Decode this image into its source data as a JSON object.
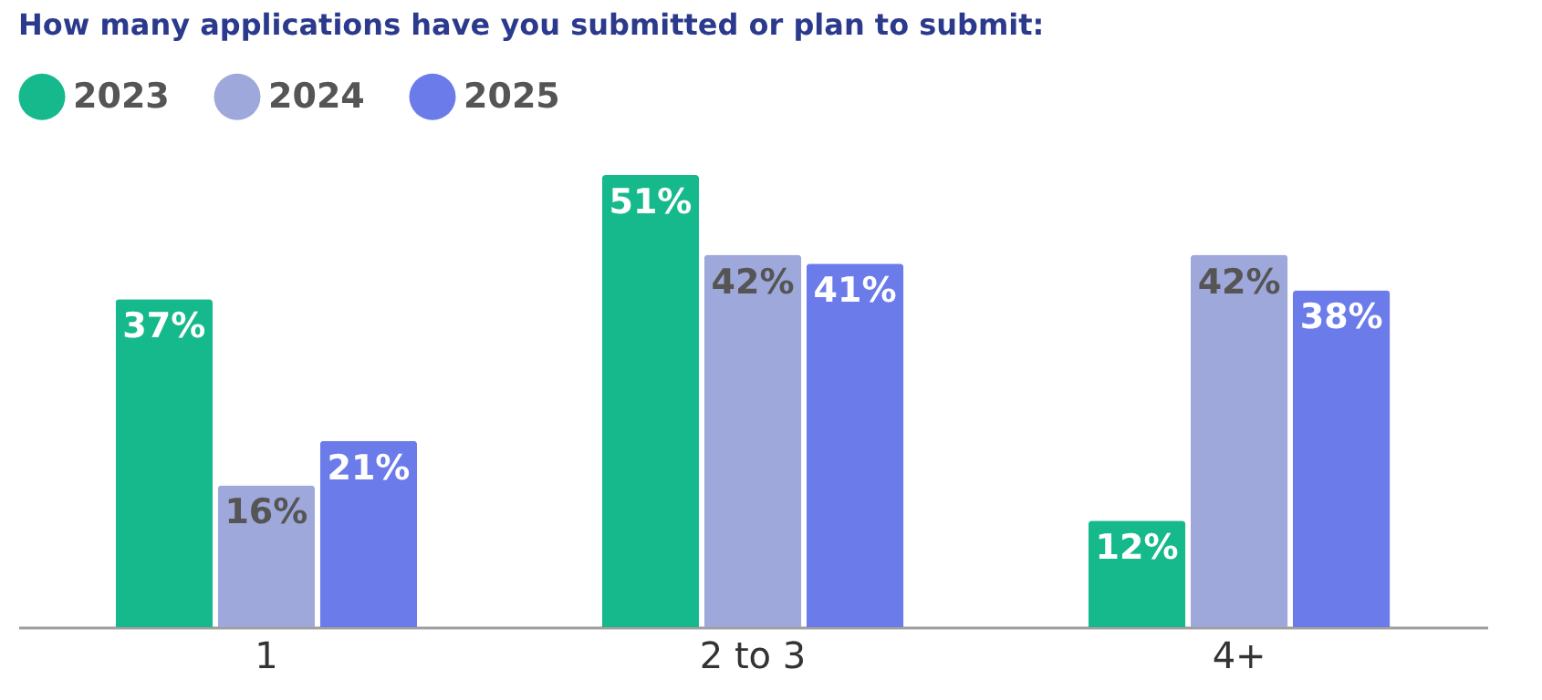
{
  "chart_data": {
    "type": "bar",
    "title": "How many applications have you submitted or plan to submit:",
    "categories": [
      "1",
      "2 to 3",
      "4+"
    ],
    "series": [
      {
        "name": "2023",
        "color": "#15b98b",
        "values": [
          37,
          51,
          12
        ],
        "value_labels": [
          "37%",
          "51%",
          "12%"
        ]
      },
      {
        "name": "2024",
        "color": "#9fa8da",
        "values": [
          16,
          42,
          42
        ],
        "value_labels": [
          "16%",
          "42%",
          "42%"
        ]
      },
      {
        "name": "2025",
        "color": "#6b7bea",
        "values": [
          21,
          41,
          38
        ],
        "value_labels": [
          "21%",
          "41%",
          "38%"
        ]
      }
    ],
    "legend": "top left",
    "grid": false
  }
}
